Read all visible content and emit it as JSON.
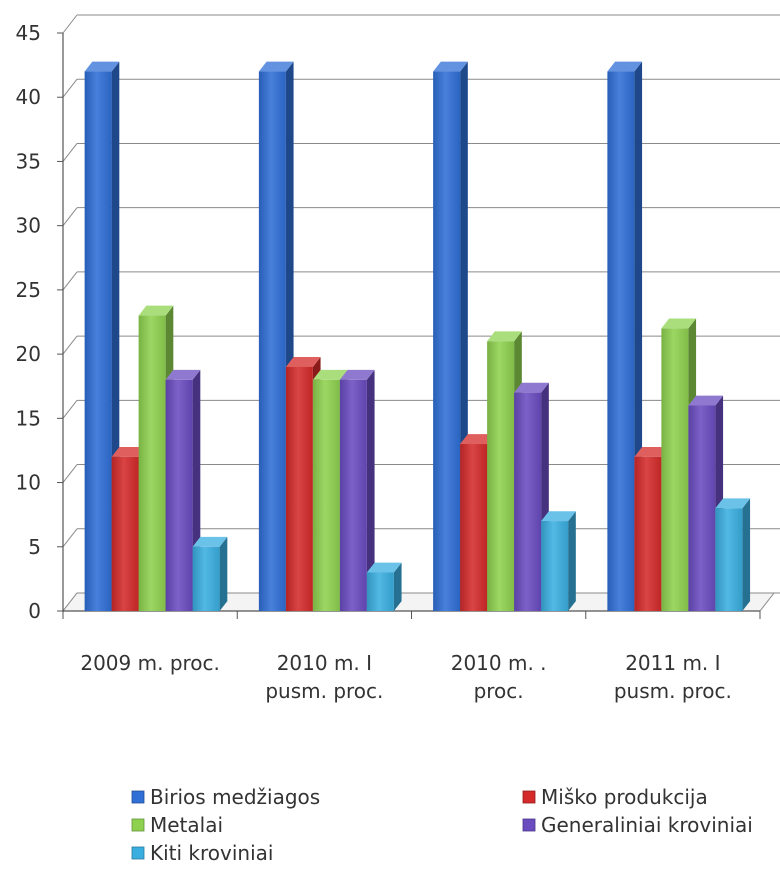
{
  "chart_data": {
    "type": "bar",
    "categories": [
      [
        "2009 m. proc."
      ],
      [
        "2010 m.   I",
        "pusm. proc."
      ],
      [
        "2010 m.     .",
        "proc."
      ],
      [
        "2011 m.   I",
        "pusm. proc."
      ]
    ],
    "series": [
      {
        "name": "Birios medžiagos",
        "color": "#2f6fd6",
        "values": [
          42,
          42,
          42,
          42
        ]
      },
      {
        "name": "Miško produkcija",
        "color": "#d42a2a",
        "values": [
          12,
          19,
          13,
          12
        ]
      },
      {
        "name": "Metalai",
        "color": "#8ed14f",
        "values": [
          23,
          18,
          21,
          22
        ]
      },
      {
        "name": "Generaliniai kroviniai",
        "color": "#6a4cc0",
        "values": [
          18,
          18,
          17,
          16
        ]
      },
      {
        "name": "Kiti kroviniai",
        "color": "#3aaee0",
        "values": [
          5,
          3,
          7,
          8
        ]
      }
    ],
    "ylim": [
      0,
      45
    ],
    "yticks": [
      0,
      5,
      10,
      15,
      20,
      25,
      30,
      35,
      40,
      45
    ],
    "grid": true,
    "legend": "bottom"
  }
}
